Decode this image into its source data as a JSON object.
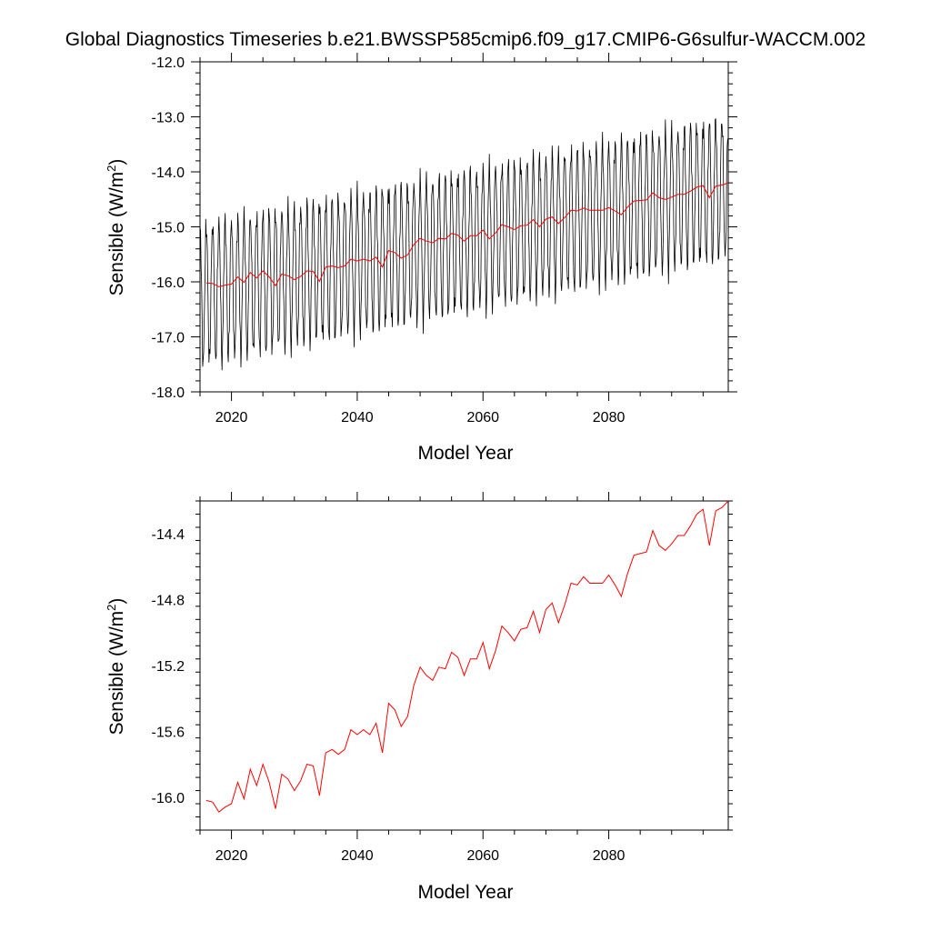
{
  "title": "Global Diagnostics Timeseries b.e21.BWSSP585cmip6.f09_g17.CMIP6-G6sulfur-WACCM.002",
  "colors": {
    "monthly": "#000000",
    "annual": "#ff0000"
  },
  "annual_y": [
    -16.02,
    -16.03,
    -16.09,
    -16.06,
    -16.04,
    -15.91,
    -16.01,
    -15.83,
    -15.93,
    -15.8,
    -15.91,
    -16.07,
    -15.86,
    -15.89,
    -15.96,
    -15.9,
    -15.8,
    -15.81,
    -15.99,
    -15.73,
    -15.71,
    -15.74,
    -15.71,
    -15.59,
    -15.62,
    -15.59,
    -15.62,
    -15.55,
    -15.73,
    -15.43,
    -15.47,
    -15.57,
    -15.51,
    -15.32,
    -15.21,
    -15.26,
    -15.29,
    -15.21,
    -15.22,
    -15.12,
    -15.15,
    -15.26,
    -15.16,
    -15.16,
    -15.06,
    -15.22,
    -15.11,
    -14.96,
    -15.0,
    -15.05,
    -14.98,
    -14.97,
    -14.87,
    -15.0,
    -14.86,
    -14.82,
    -14.94,
    -14.83,
    -14.7,
    -14.71,
    -14.66,
    -14.7,
    -14.7,
    -14.7,
    -14.65,
    -14.71,
    -14.78,
    -14.64,
    -14.53,
    -14.52,
    -14.51,
    -14.38,
    -14.47,
    -14.5,
    -14.46,
    -14.41,
    -14.41,
    -14.35,
    -14.28,
    -14.25,
    -14.47,
    -14.26,
    -14.24,
    -14.2
  ],
  "chart_data": [
    {
      "type": "line",
      "title": "Global Diagnostics Timeseries b.e21.BWSSP585cmip6.f09_g17.CMIP6-G6sulfur-WACCM.002",
      "xlabel": "Model Year",
      "ylabel": "Sensible (W/m2)",
      "xlim": [
        2015,
        2099
      ],
      "ylim": [
        -18.0,
        -12.0
      ],
      "xticks": [
        2020,
        2040,
        2060,
        2080
      ],
      "yticks": [
        "-12.0",
        "-13.0",
        "-14.0",
        "-15.0",
        "-16.0",
        "-17.0",
        "-18.0"
      ],
      "series": [
        {
          "kind": "monthly",
          "color": "#000000",
          "start_year": 2015,
          "months": 1008,
          "trend_start": -16.1,
          "trend_end": -14.15,
          "seasonal_peak": 1.1,
          "seasonal_trough": -1.4
        },
        {
          "kind": "annual-mean",
          "color": "#ff0000",
          "x_start": 2016,
          "values_ref": "annual_y"
        }
      ]
    },
    {
      "type": "line",
      "xlabel": "Model Year",
      "ylabel": "Sensible (W/m2)",
      "xlim": [
        2015,
        2099
      ],
      "ylim": [
        -16.2,
        -14.2
      ],
      "xticks": [
        2020,
        2040,
        2060,
        2080
      ],
      "yticks": [
        "-14.4",
        "-14.8",
        "-15.2",
        "-15.6",
        "-16.0"
      ],
      "series": [
        {
          "kind": "annual-mean",
          "color": "#ff0000",
          "x_start": 2016,
          "values_ref": "annual_y"
        }
      ]
    }
  ]
}
